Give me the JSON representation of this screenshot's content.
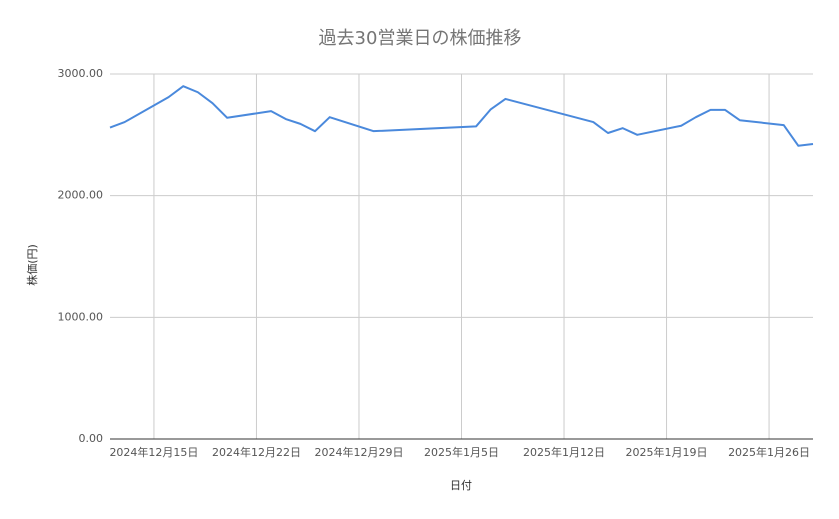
{
  "chart_data": {
    "type": "line",
    "title": "過去30営業日の株価推移",
    "x_label": "日付",
    "y_label": "株価(円)",
    "x": [
      "2024-12-12",
      "2024-12-13",
      "2024-12-16",
      "2024-12-17",
      "2024-12-18",
      "2024-12-19",
      "2024-12-20",
      "2024-12-23",
      "2024-12-24",
      "2024-12-25",
      "2024-12-26",
      "2024-12-27",
      "2024-12-30",
      "2025-01-06",
      "2025-01-07",
      "2025-01-08",
      "2025-01-14",
      "2025-01-15",
      "2025-01-16",
      "2025-01-17",
      "2025-01-20",
      "2025-01-21",
      "2025-01-22",
      "2025-01-23",
      "2025-01-24",
      "2025-01-27",
      "2025-01-28",
      "2025-01-29"
    ],
    "series": [
      {
        "name": "株価(円)",
        "color": "#4a89dc",
        "values": [
          2560,
          2605,
          2810,
          2900,
          2850,
          2760,
          2640,
          2695,
          2630,
          2590,
          2530,
          2645,
          2530,
          2570,
          2710,
          2795,
          2605,
          2515,
          2555,
          2500,
          2575,
          2645,
          2705,
          2705,
          2620,
          2580,
          2410,
          2425
        ]
      }
    ],
    "xlim": [
      "2024-12-12",
      "2025-01-29"
    ],
    "xticks": [
      {
        "value": "2024-12-15",
        "label": "2024年12月15日"
      },
      {
        "value": "2024-12-22",
        "label": "2024年12月22日"
      },
      {
        "value": "2024-12-29",
        "label": "2024年12月29日"
      },
      {
        "value": "2025-01-05",
        "label": "2025年1月5日"
      },
      {
        "value": "2025-01-12",
        "label": "2025年1月12日"
      },
      {
        "value": "2025-01-19",
        "label": "2025年1月19日"
      },
      {
        "value": "2025-01-26",
        "label": "2025年1月26日"
      }
    ],
    "ylim": [
      0,
      3000
    ],
    "yticks": [
      {
        "value": 0,
        "label": "0.00"
      },
      {
        "value": 1000,
        "label": "1000.00"
      },
      {
        "value": 2000,
        "label": "2000.00"
      },
      {
        "value": 3000,
        "label": "3000.00"
      }
    ],
    "grid": true
  }
}
